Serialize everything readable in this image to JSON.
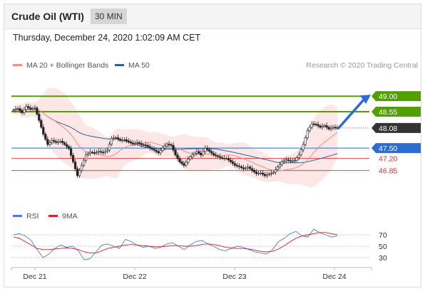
{
  "header": {
    "title": "Crude Oil (WTI)",
    "timeframe": "30 MIN"
  },
  "datetime": "Thursday, December 24, 2020 1:02:09 AM CET",
  "credit": "Research © 2020 Trading Central",
  "colors": {
    "ma20": "#f28b8b",
    "ma50": "#2f5e9e",
    "bands": "#fde0e0",
    "resistance": "#52a000",
    "support": "#2f6ccf",
    "minor": "#d22f2f",
    "current": "#333333",
    "rsi": "#5577dd",
    "rsi_ma": "#dd2222"
  },
  "chart_data": [
    {
      "type": "candlestick",
      "legend": [
        {
          "name": "MA 20 + Bollinger Bands",
          "color": "#f28b8b"
        },
        {
          "name": "MA 50",
          "color": "#2f5e9e"
        }
      ],
      "legend_position": "top-left",
      "x_ticks": [
        "Dec 21",
        "Dec 22",
        "Dec 23",
        "Dec 24"
      ],
      "ylim": [
        46.0,
        49.6
      ],
      "price_path": [
        48.6,
        48.64,
        48.52,
        48.7,
        48.62,
        48.66,
        48.3,
        47.9,
        47.6,
        47.72,
        47.66,
        47.7,
        47.6,
        47.48,
        47.1,
        46.7,
        47.0,
        47.3,
        47.38,
        47.36,
        47.4,
        47.36,
        47.44,
        47.78,
        47.8,
        47.72,
        47.74,
        47.68,
        47.62,
        47.66,
        47.6,
        47.58,
        47.5,
        47.44,
        47.36,
        47.5,
        47.62,
        47.58,
        47.3,
        47.1,
        47.0,
        47.18,
        47.3,
        47.4,
        47.3,
        47.5,
        47.4,
        47.3,
        47.25,
        47.2,
        47.2,
        47.1,
        47.0,
        46.96,
        46.9,
        46.95,
        46.86,
        46.76,
        46.78,
        46.7,
        46.75,
        46.8,
        46.95,
        47.1,
        47.16,
        47.12,
        47.14,
        47.3,
        47.6,
        48.0,
        48.2,
        48.18,
        48.1,
        48.15,
        48.05,
        48.1,
        48.08
      ],
      "current_price": 48.08,
      "levels": [
        {
          "label": "49.00",
          "value": 49.0,
          "kind": "resistance"
        },
        {
          "label": "48.55",
          "value": 48.55,
          "kind": "resistance"
        },
        {
          "label": "48.08",
          "value": 48.08,
          "kind": "current"
        },
        {
          "label": "47.50",
          "value": 47.5,
          "kind": "support"
        },
        {
          "label": "47.20",
          "value": 47.2,
          "kind": "minor"
        },
        {
          "label": "46.85",
          "value": 46.85,
          "kind": "minor"
        }
      ],
      "arrow_target": 49.0
    },
    {
      "type": "line",
      "legend": [
        {
          "name": "RSI",
          "color": "#5577dd"
        },
        {
          "name": "9MA",
          "color": "#dd2222"
        }
      ],
      "ylim": [
        15,
        85
      ],
      "y_ticks": [
        "70",
        "50",
        "30"
      ],
      "rsi": [
        70,
        72,
        68,
        60,
        44,
        30,
        36,
        46,
        52,
        48,
        50,
        42,
        26,
        28,
        40,
        52,
        54,
        50,
        46,
        62,
        58,
        52,
        48,
        50,
        46,
        48,
        54,
        56,
        50,
        44,
        52,
        58,
        60,
        54,
        50,
        44,
        42,
        46,
        50,
        48,
        44,
        40,
        38,
        36,
        44,
        58,
        64,
        72,
        76,
        68,
        66,
        80,
        74,
        70,
        66,
        68
      ],
      "rsi_ma": [
        66,
        64,
        58,
        52,
        46,
        44,
        44,
        45,
        46,
        47,
        46,
        44,
        40,
        38,
        38,
        42,
        46,
        48,
        50,
        52,
        53,
        52,
        51,
        50,
        49,
        49,
        50,
        51,
        51,
        50,
        50,
        51,
        53,
        54,
        53,
        51,
        48,
        47,
        46,
        46,
        45,
        43,
        41,
        40,
        41,
        45,
        51,
        58,
        64,
        68,
        70,
        72,
        74,
        74,
        72,
        70
      ]
    }
  ]
}
